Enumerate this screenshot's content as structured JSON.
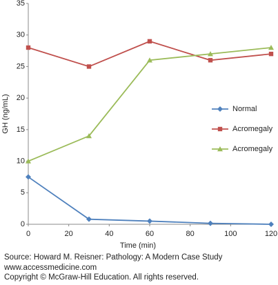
{
  "chart_data": {
    "type": "line",
    "x": [
      0,
      30,
      60,
      90,
      120
    ],
    "series": [
      {
        "name": "Normal",
        "color": "#4f81bd",
        "marker": "diamond",
        "values": [
          7.5,
          0.8,
          0.5,
          0.15,
          0.0
        ]
      },
      {
        "name": "Acromegaly",
        "color": "#c0504d",
        "marker": "square",
        "values": [
          28,
          25,
          29,
          26,
          27
        ]
      },
      {
        "name": "Acromegaly",
        "color": "#9bbb59",
        "marker": "triangle",
        "values": [
          10,
          14,
          26,
          27,
          28
        ]
      }
    ],
    "xlabel": "Time (min)",
    "ylabel": "GH (ng/mL)",
    "xlim": [
      0,
      120
    ],
    "xticks": [
      0,
      20,
      40,
      60,
      80,
      100,
      120
    ],
    "ylim": [
      0,
      35
    ],
    "yticks": [
      0,
      5,
      10,
      15,
      20,
      25,
      30,
      35
    ],
    "grid": false,
    "legend": "right",
    "source": [
      "Source: Howard M. Reisner: Pathology: A Modern Case Study",
      "www.accessmedicine.com",
      "Copyright © McGraw-Hill Education.  All rights reserved."
    ]
  }
}
